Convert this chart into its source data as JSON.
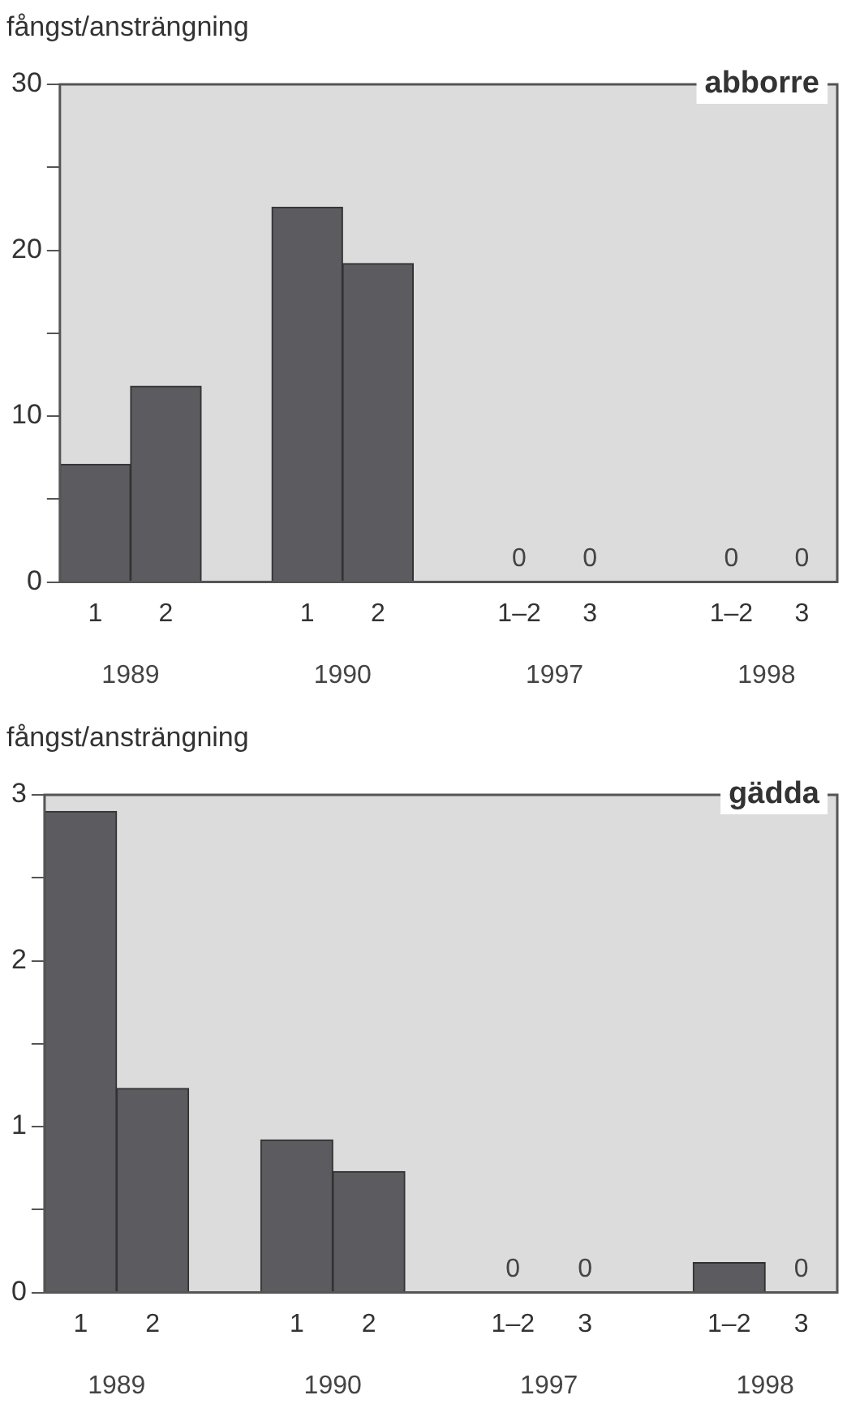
{
  "chart_data": [
    {
      "type": "bar",
      "title": "abborre",
      "ylabel": "fångst/ansträngning",
      "categories": [
        "1",
        "2",
        null,
        "1",
        "2",
        null,
        "1–2",
        "3",
        null,
        "1–2",
        "3"
      ],
      "values": [
        7.1,
        11.8,
        null,
        22.6,
        19.2,
        null,
        0,
        0,
        null,
        0,
        0
      ],
      "value_labels": [
        null,
        null,
        null,
        null,
        null,
        null,
        "0",
        "0",
        null,
        "0",
        "0"
      ],
      "color": "#5c5c60",
      "annotations": [
        "1989",
        "1990",
        "1997",
        "1998"
      ],
      "ylim": [
        0,
        30
      ],
      "yticks": [
        0,
        {
          "value": 5,
          "label": null
        },
        10,
        {
          "value": 15,
          "label": null
        },
        20,
        {
          "value": 25,
          "label": null
        },
        30
      ],
      "legend": false
    },
    {
      "type": "bar",
      "title": "gädda",
      "ylabel": "fångst/ansträngning",
      "categories": [
        "1",
        "2",
        null,
        "1",
        "2",
        null,
        "1–2",
        "3",
        null,
        "1–2",
        "3"
      ],
      "values": [
        2.9,
        1.23,
        null,
        0.92,
        0.73,
        null,
        0,
        0,
        null,
        0.18,
        0
      ],
      "value_labels": [
        null,
        null,
        null,
        null,
        null,
        null,
        "0",
        "0",
        null,
        null,
        "0"
      ],
      "color": "#5c5c60",
      "annotations": [
        "1989",
        "1990",
        "1997",
        "1998"
      ],
      "ylim": [
        0,
        3
      ],
      "yticks": [
        0,
        {
          "value": 0.5,
          "label": null
        },
        1,
        {
          "value": 1.5,
          "label": null
        },
        2,
        {
          "value": 2.5,
          "label": null
        },
        3
      ],
      "legend": false
    }
  ]
}
